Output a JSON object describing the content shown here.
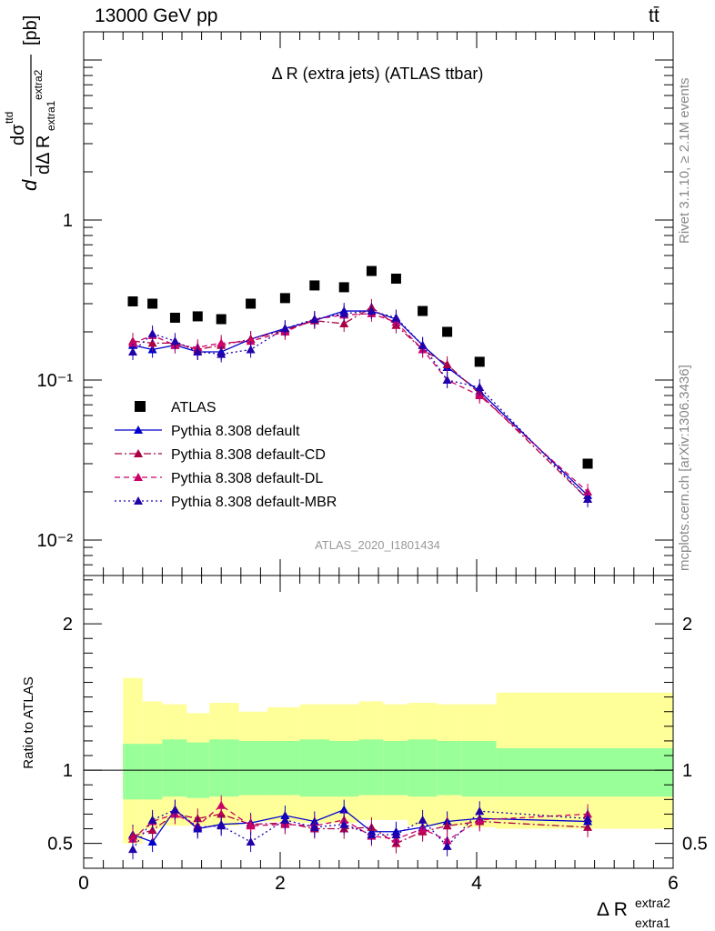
{
  "header": {
    "left": "13000 GeV pp",
    "right": "tt̄"
  },
  "side_labels": {
    "upper": "Rivet 3.1.10, ≥ 2.1M events",
    "lower": "mcplots.cern.ch [arXiv:1306.3436]"
  },
  "chart_data": {
    "type": "scatter",
    "title": "Δ R (extra jets) (ATLAS ttbar)",
    "analysis_id": "ATLAS_2020_I1801434",
    "xlabel": "Δ R extra1 extra2",
    "ylabel": "dσ ttd / dΔ R extra1 extra2 [pb]",
    "ratio_ylabel": "Ratio to ATLAS",
    "xlim": [
      0,
      6
    ],
    "ylim_main": [
      0.006,
      15
    ],
    "ylim_ratio": [
      0.33,
      2.33
    ],
    "log_y_main": true,
    "x_ticks": [
      "0",
      "2",
      "4",
      "6"
    ],
    "y_ticks_main": [
      "10⁻²",
      "10⁻¹",
      "1"
    ],
    "y_ticks_ratio": [
      "0.5",
      "1",
      "2"
    ],
    "legend_position": "lower-left",
    "x": [
      0.5,
      0.7,
      0.93,
      1.16,
      1.4,
      1.7,
      2.05,
      2.35,
      2.65,
      2.93,
      3.18,
      3.45,
      3.7,
      4.03,
      5.13
    ],
    "bin_edges": [
      0.4,
      0.6,
      0.8,
      1.05,
      1.28,
      1.58,
      1.87,
      2.2,
      2.5,
      2.8,
      3.05,
      3.3,
      3.6,
      3.85,
      4.2,
      6.0
    ],
    "series": [
      {
        "name": "ATLAS",
        "marker": "square",
        "color": "#000000",
        "values": [
          0.31,
          0.3,
          0.245,
          0.25,
          0.24,
          0.3,
          0.325,
          0.39,
          0.38,
          0.48,
          0.43,
          0.27,
          0.2,
          0.13,
          0.03
        ]
      },
      {
        "name": "Pythia 8.308 default",
        "marker": "triangle",
        "color": "#0000cc",
        "line": "solid",
        "values": [
          0.165,
          0.155,
          0.165,
          0.15,
          0.15,
          0.18,
          0.21,
          0.235,
          0.27,
          0.27,
          0.24,
          0.165,
          0.12,
          0.085,
          0.019
        ]
      },
      {
        "name": "Pythia 8.308 default-CD",
        "marker": "triangle",
        "color": "#aa0044",
        "line": "dashdot",
        "values": [
          0.175,
          0.17,
          0.17,
          0.155,
          0.165,
          0.18,
          0.205,
          0.235,
          0.225,
          0.285,
          0.22,
          0.155,
          0.125,
          0.082,
          0.018
        ]
      },
      {
        "name": "Pythia 8.308 default-DL",
        "marker": "triangle",
        "color": "#cc0066",
        "line": "dashed",
        "values": [
          0.17,
          0.19,
          0.165,
          0.16,
          0.17,
          0.175,
          0.2,
          0.24,
          0.255,
          0.26,
          0.23,
          0.155,
          0.1,
          0.08,
          0.02
        ]
      },
      {
        "name": "Pythia 8.308 default-MBR",
        "marker": "triangle",
        "color": "#2200aa",
        "line": "dotted",
        "values": [
          0.15,
          0.195,
          0.175,
          0.15,
          0.145,
          0.155,
          0.21,
          0.24,
          0.26,
          0.27,
          0.245,
          0.165,
          0.1,
          0.09,
          0.018
        ]
      }
    ],
    "ratio_series": [
      {
        "name": "Pythia 8.308 default",
        "values": [
          0.56,
          0.51,
          0.73,
          0.6,
          0.63,
          0.64,
          0.69,
          0.65,
          0.73,
          0.58,
          0.58,
          0.61,
          0.65,
          0.67,
          0.65
        ]
      },
      {
        "name": "Pythia 8.308 default-CD",
        "values": [
          0.55,
          0.59,
          0.7,
          0.67,
          0.7,
          0.63,
          0.64,
          0.6,
          0.6,
          0.61,
          0.5,
          0.58,
          0.62,
          0.65,
          0.61
        ]
      },
      {
        "name": "Pythia 8.308 default-DL",
        "values": [
          0.53,
          0.65,
          0.7,
          0.62,
          0.76,
          0.62,
          0.63,
          0.62,
          0.66,
          0.55,
          0.53,
          0.6,
          0.52,
          0.66,
          0.7
        ]
      },
      {
        "name": "Pythia 8.308 default-MBR",
        "values": [
          0.46,
          0.66,
          0.73,
          0.61,
          0.62,
          0.51,
          0.66,
          0.61,
          0.63,
          0.56,
          0.56,
          0.66,
          0.48,
          0.72,
          0.67
        ]
      }
    ],
    "band_green": {
      "lo": [
        0.8,
        0.8,
        0.82,
        0.81,
        0.82,
        0.83,
        0.83,
        0.82,
        0.82,
        0.83,
        0.83,
        0.82,
        0.83,
        0.82,
        0.82
      ],
      "hi": [
        1.18,
        1.18,
        1.21,
        1.19,
        1.21,
        1.2,
        1.2,
        1.21,
        1.2,
        1.21,
        1.2,
        1.21,
        1.2,
        1.2,
        1.15
      ]
    },
    "band_yellow": {
      "lo": [
        0.5,
        0.6,
        0.62,
        0.62,
        0.62,
        0.65,
        0.65,
        0.64,
        0.64,
        0.66,
        0.66,
        0.62,
        0.62,
        0.61,
        0.6
      ],
      "hi": [
        1.63,
        1.47,
        1.45,
        1.39,
        1.46,
        1.4,
        1.43,
        1.45,
        1.45,
        1.47,
        1.45,
        1.46,
        1.45,
        1.45,
        1.53
      ]
    }
  }
}
